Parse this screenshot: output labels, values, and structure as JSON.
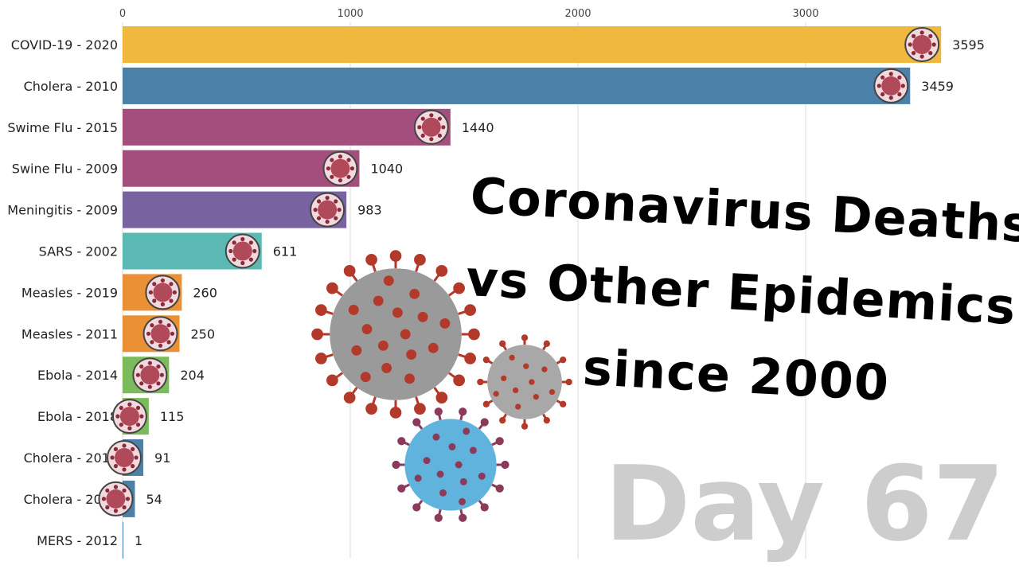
{
  "headline": {
    "line1": "Coronavirus Deaths",
    "line2": "vs Other Epidemics",
    "line3": "since 2000"
  },
  "day_counter": "Day 67",
  "chart_data": {
    "type": "bar",
    "orientation": "horizontal",
    "categories": [
      "COVID-19 - 2020",
      "Cholera - 2010",
      "Swime Flu - 2015",
      "Swine Flu - 2009",
      "Meningitis - 2009",
      "SARS - 2002",
      "Measles - 2019",
      "Measles - 2011",
      "Ebola - 2014",
      "Ebola - 2018",
      "Cholera - 2016",
      "Cholera - 2008",
      "MERS - 2012"
    ],
    "values": [
      3595,
      3459,
      1440,
      1040,
      983,
      611,
      260,
      250,
      204,
      115,
      91,
      54,
      1
    ],
    "colors": [
      "#efb940",
      "#4b81a8",
      "#a34e7c",
      "#a34e7c",
      "#7862a0",
      "#5ab9b3",
      "#e99134",
      "#e99134",
      "#7cbb5c",
      "#7cbb5c",
      "#4b81a8",
      "#4b81a8",
      "#4b81a8"
    ],
    "icons": [
      "coronavirus-icon",
      "cholera-bacteria-icon",
      "flu-virus-icon",
      "flu-virus-icon",
      "meningitis-icon",
      "sars-virus-icon",
      "measles-virus-icon",
      "measles-virus-icon",
      "ebola-virus-icon",
      "ebola-virus-icon",
      "cholera-bacteria-icon",
      "cholera-bacteria-icon",
      null
    ],
    "xticks": [
      0,
      1000,
      2000,
      3000
    ],
    "xlim": [
      0,
      3900
    ],
    "grid": true
  }
}
